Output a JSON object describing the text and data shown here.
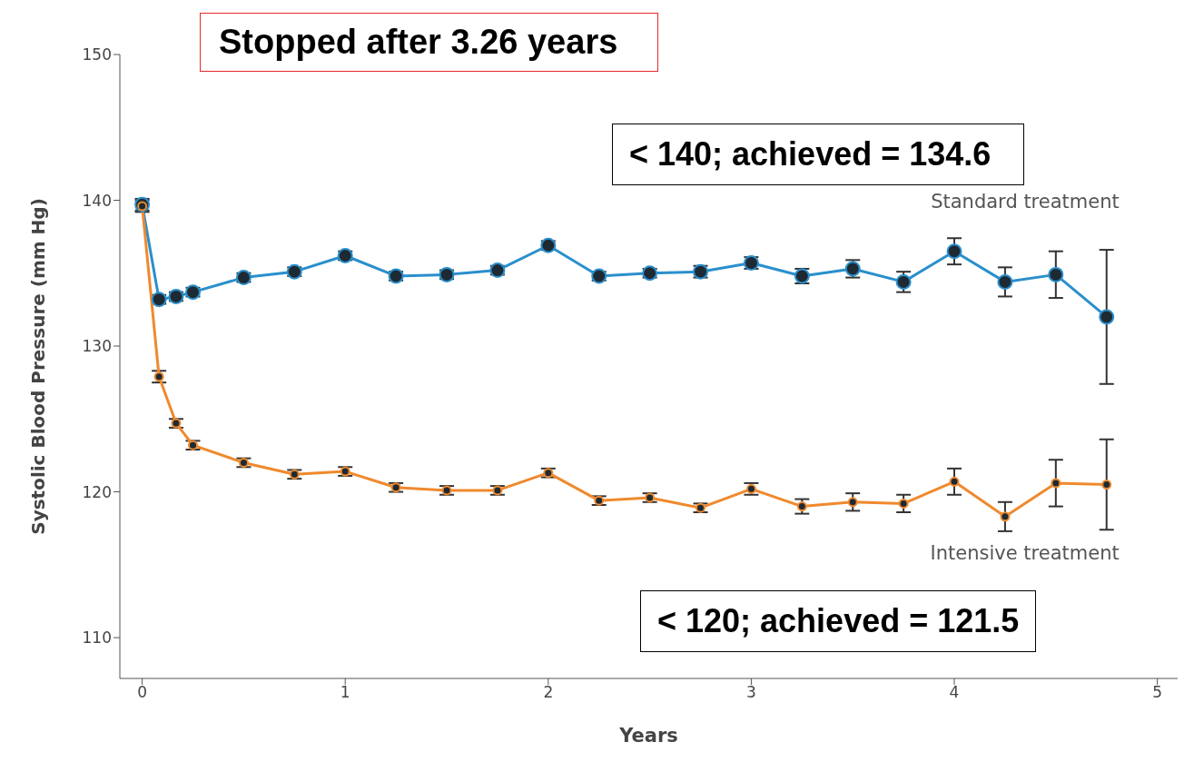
{
  "chart_data": {
    "type": "line",
    "xlabel": "Years",
    "ylabel": "Systolic Blood Pressure (mm Hg)",
    "x": [
      0,
      0.083,
      0.167,
      0.25,
      0.5,
      0.75,
      1,
      1.25,
      1.5,
      1.75,
      2,
      2.25,
      2.5,
      2.75,
      3,
      3.25,
      3.5,
      3.75,
      4,
      4.25,
      4.5,
      4.75
    ],
    "series": [
      {
        "name": "Standard treatment",
        "color": "#2a8fcc",
        "values": [
          139.7,
          133.2,
          133.4,
          133.7,
          134.7,
          135.1,
          136.2,
          134.8,
          134.9,
          135.2,
          136.9,
          134.8,
          135.0,
          135.1,
          135.7,
          134.8,
          135.3,
          134.4,
          136.5,
          134.4,
          134.9,
          132.0
        ],
        "errors": [
          0.4,
          0.3,
          0.3,
          0.3,
          0.3,
          0.3,
          0.3,
          0.3,
          0.3,
          0.3,
          0.3,
          0.3,
          0.3,
          0.4,
          0.4,
          0.5,
          0.6,
          0.7,
          0.9,
          1.0,
          1.6,
          4.6
        ]
      },
      {
        "name": "Intensive treatment",
        "color": "#f0892d",
        "values": [
          139.6,
          127.9,
          124.7,
          123.2,
          122.0,
          121.2,
          121.4,
          120.3,
          120.1,
          120.1,
          121.3,
          119.4,
          119.6,
          118.9,
          120.2,
          119.0,
          119.3,
          119.2,
          120.7,
          118.3,
          120.6,
          120.5
        ],
        "errors": [
          0.4,
          0.4,
          0.3,
          0.3,
          0.3,
          0.3,
          0.3,
          0.3,
          0.3,
          0.3,
          0.3,
          0.3,
          0.3,
          0.3,
          0.4,
          0.5,
          0.6,
          0.6,
          0.9,
          1.0,
          1.6,
          3.1
        ]
      }
    ],
    "xlim": [
      -0.11,
      5.1
    ],
    "xticks": [
      0,
      1,
      2,
      3,
      4,
      5
    ],
    "ylim": [
      107.2,
      150
    ],
    "yticks": [
      110,
      120,
      130,
      140,
      150
    ],
    "grid": false,
    "marker": "circle",
    "line_style": "solid",
    "annotations": [
      "Stopped after 3.26 years",
      "< 140; achieved  = 134.6",
      "< 120; achieved = 121.5"
    ]
  }
}
